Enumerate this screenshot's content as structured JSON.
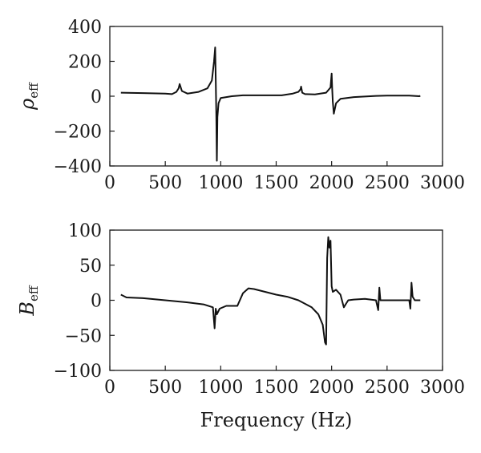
{
  "chart_data": [
    {
      "type": "line",
      "panel": "top",
      "title": "",
      "ylabel": "ρ",
      "ylabel_sub": "eff",
      "xlabel": "",
      "xlim": [
        0,
        3000
      ],
      "ylim": [
        -400,
        400
      ],
      "xticks": [
        0,
        500,
        1000,
        1500,
        2000,
        2500,
        3000
      ],
      "yticks": [
        -400,
        -200,
        0,
        200,
        400
      ],
      "grid": false,
      "line_color": "#111111",
      "series": [
        {
          "x": [
            100,
            300,
            500,
            560,
            600,
            620,
            630,
            650,
            700,
            800,
            880,
            920,
            940,
            950,
            955,
            960,
            965,
            970,
            980,
            1000,
            1050,
            1100,
            1200,
            1400,
            1550,
            1650,
            1700,
            1720,
            1725,
            1735,
            1760,
            1850,
            1950,
            1990,
            2000,
            2005,
            2010,
            2020,
            2040,
            2080,
            2200,
            2400,
            2500,
            2700,
            2790,
            2800
          ],
          "y": [
            20,
            18,
            15,
            12,
            25,
            45,
            70,
            30,
            15,
            25,
            45,
            90,
            200,
            280,
            100,
            -100,
            -370,
            -120,
            -40,
            -10,
            -5,
            0,
            5,
            5,
            5,
            15,
            25,
            40,
            55,
            20,
            12,
            10,
            20,
            50,
            130,
            40,
            -30,
            -100,
            -40,
            -15,
            -5,
            2,
            3,
            3,
            0,
            2
          ]
        }
      ]
    },
    {
      "type": "line",
      "panel": "bottom",
      "title": "",
      "ylabel": "B",
      "ylabel_sub": "eff",
      "xlabel": "Frequency (Hz)",
      "xlim": [
        0,
        3000
      ],
      "ylim": [
        -100,
        100
      ],
      "xticks": [
        0,
        500,
        1000,
        1500,
        2000,
        2500,
        3000
      ],
      "yticks": [
        -100,
        -50,
        0,
        50,
        100
      ],
      "grid": false,
      "line_color": "#111111",
      "series": [
        {
          "x": [
            100,
            150,
            300,
            500,
            700,
            850,
            930,
            945,
            955,
            965,
            990,
            1050,
            1100,
            1150,
            1200,
            1250,
            1300,
            1400,
            1500,
            1600,
            1700,
            1760,
            1820,
            1880,
            1920,
            1940,
            1950,
            1960,
            1970,
            1980,
            1990,
            2000,
            2010,
            2040,
            2080,
            2110,
            2130,
            2150,
            2200,
            2300,
            2400,
            2420,
            2430,
            2440,
            2450,
            2500,
            2600,
            2700,
            2710,
            2720,
            2730,
            2750,
            2800
          ],
          "y": [
            8,
            4,
            3,
            0,
            -3,
            -6,
            -10,
            -40,
            -12,
            -20,
            -12,
            -8,
            -8,
            -8,
            10,
            17,
            16,
            12,
            8,
            5,
            0,
            -5,
            -10,
            -20,
            -35,
            -60,
            -63,
            60,
            90,
            75,
            85,
            20,
            12,
            15,
            8,
            -10,
            -5,
            0,
            1,
            2,
            0,
            -14,
            18,
            0,
            0,
            0,
            0,
            0,
            -12,
            25,
            5,
            0,
            0
          ]
        }
      ]
    }
  ]
}
